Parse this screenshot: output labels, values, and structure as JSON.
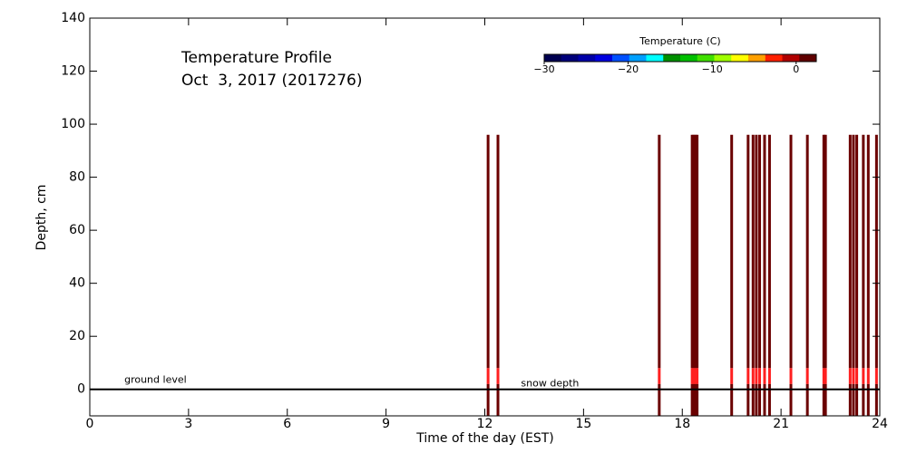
{
  "chart_data": {
    "type": "profile",
    "title": "Temperature Profile",
    "subtitle": "Oct  3, 2017 (2017276)",
    "xlabel": "Time of the day (EST)",
    "ylabel": "Depth, cm",
    "xlim": [
      0,
      24
    ],
    "xticks": [
      0,
      3,
      6,
      9,
      12,
      15,
      18,
      21,
      24
    ],
    "ylim": [
      -10,
      140
    ],
    "yticks": [
      0,
      20,
      40,
      60,
      80,
      100,
      120,
      140
    ],
    "annotations": [
      "ground level",
      "snow depth"
    ],
    "x": [
      12.1,
      12.4,
      17.3,
      18.3,
      18.35,
      18.4,
      18.45,
      19.5,
      20.0,
      20.15,
      20.25,
      20.35,
      20.5,
      20.65,
      21.3,
      21.8,
      22.3,
      22.35,
      23.1,
      23.2,
      23.3,
      23.5,
      23.65,
      23.9
    ],
    "values": [
      1,
      1,
      1,
      1,
      1,
      1,
      1,
      1,
      1,
      1,
      1,
      1,
      1,
      1,
      1,
      1,
      1,
      1,
      1,
      1,
      1,
      1,
      1,
      1
    ],
    "layers": [
      {
        "top": 96,
        "bottom": 8,
        "color": "#6b0000"
      },
      {
        "top": 8,
        "bottom": 2,
        "color": "#ff2020"
      },
      {
        "top": 2,
        "bottom": -10,
        "color": "#6b0000"
      }
    ],
    "colorbar": {
      "label": "Temperature (C)",
      "lim": [
        -30,
        2.4
      ],
      "ticks": [
        {
          "value": -30,
          "label": "−30"
        },
        {
          "value": -20,
          "label": "−20"
        },
        {
          "value": -10,
          "label": "−10"
        },
        0
      ],
      "colors": [
        "#000050",
        "#00007a",
        "#0000a8",
        "#0000e0",
        "#0050ff",
        "#00a0ff",
        "#00ffff",
        "#009000",
        "#00c000",
        "#40e000",
        "#a0ff00",
        "#ffff00",
        "#ffa000",
        "#ff2000",
        "#b00000",
        "#600000"
      ]
    }
  }
}
